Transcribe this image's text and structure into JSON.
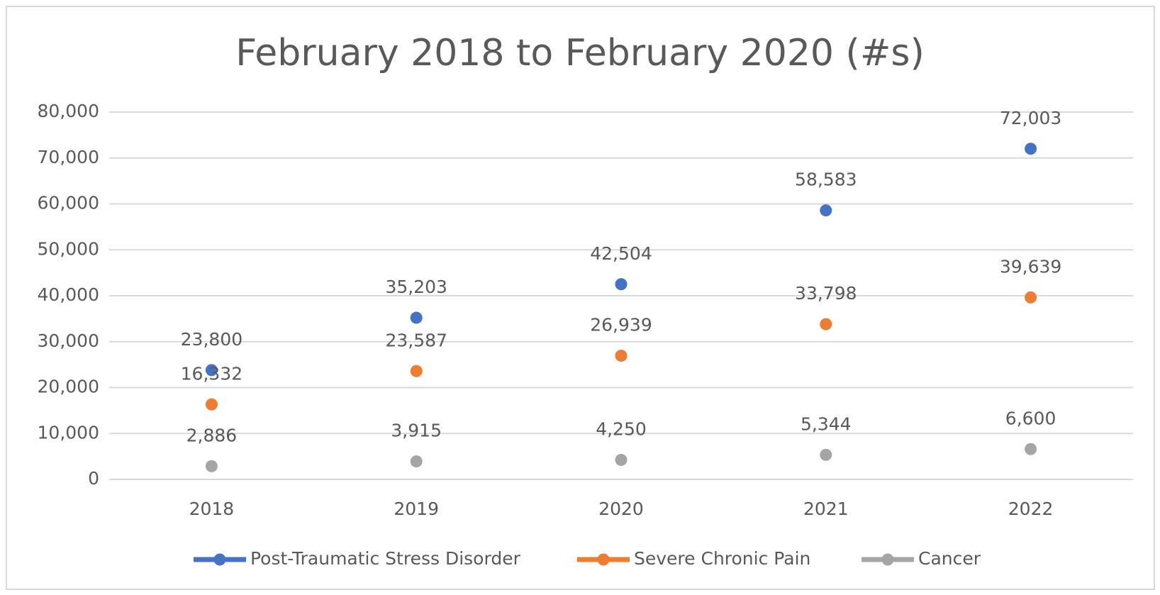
{
  "chart_data": {
    "type": "line",
    "title": "February 2018 to February 2020 (#s)",
    "categories": [
      "2018",
      "2019",
      "2020",
      "2021",
      "2022"
    ],
    "series": [
      {
        "name": "Post-Traumatic Stress Disorder",
        "color": "#4472c4",
        "values": [
          23800,
          35203,
          42504,
          58583,
          72003
        ],
        "value_labels": [
          "23,800",
          "35,203",
          "42,504",
          "58,583",
          "72,003"
        ]
      },
      {
        "name": "Severe Chronic Pain",
        "color": "#ed7d31",
        "values": [
          16332,
          23587,
          26939,
          33798,
          39639
        ],
        "value_labels": [
          "16,332",
          "23,587",
          "26,939",
          "33,798",
          "39,639"
        ]
      },
      {
        "name": "Cancer",
        "color": "#a5a5a5",
        "values": [
          2886,
          3915,
          4250,
          5344,
          6600
        ],
        "value_labels": [
          "2,886",
          "3,915",
          "4,250",
          "5,344",
          "6,600"
        ]
      }
    ],
    "ylim": [
      0,
      80000
    ],
    "yticks": [
      0,
      {
        "value": 10000,
        "label": "10,000"
      },
      {
        "value": 20000,
        "label": "20,000"
      },
      {
        "value": 30000,
        "label": "30,000"
      },
      {
        "value": 40000,
        "label": "40,000"
      },
      {
        "value": 50000,
        "label": "50,000"
      },
      {
        "value": 60000,
        "label": "60,000"
      },
      {
        "value": 70000,
        "label": "70,000"
      },
      {
        "value": 80000,
        "label": "80,000"
      }
    ],
    "grid": true,
    "legend": "bottom"
  }
}
